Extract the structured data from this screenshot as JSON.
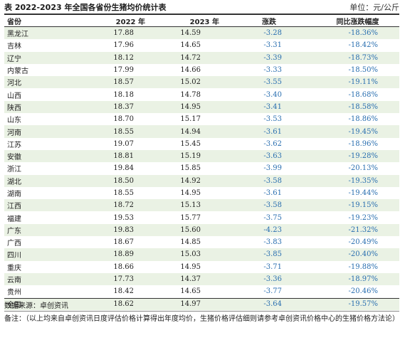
{
  "header": {
    "title": "表 2022-2023 年全国各省份生猪均价统计表",
    "unit": "单位：元/公斤"
  },
  "table": {
    "columns": [
      "省份",
      "2022 年",
      "2023 年",
      "涨跌",
      "同比涨跌幅度"
    ],
    "rows": [
      {
        "province": "黑龙江",
        "y2022": "17.88",
        "y2023": "14.59",
        "change": "-3.28",
        "pct": "-18.36%"
      },
      {
        "province": "吉林",
        "y2022": "17.96",
        "y2023": "14.65",
        "change": "-3.31",
        "pct": "-18.42%"
      },
      {
        "province": "辽宁",
        "y2022": "18.12",
        "y2023": "14.72",
        "change": "-3.39",
        "pct": "-18.73%"
      },
      {
        "province": "内蒙古",
        "y2022": "17.99",
        "y2023": "14.66",
        "change": "-3.33",
        "pct": "-18.50%"
      },
      {
        "province": "河北",
        "y2022": "18.57",
        "y2023": "15.02",
        "change": "-3.55",
        "pct": "-19.11%"
      },
      {
        "province": "山西",
        "y2022": "18.18",
        "y2023": "14.78",
        "change": "-3.40",
        "pct": "-18.68%"
      },
      {
        "province": "陕西",
        "y2022": "18.37",
        "y2023": "14.95",
        "change": "-3.41",
        "pct": "-18.58%"
      },
      {
        "province": "山东",
        "y2022": "18.70",
        "y2023": "15.17",
        "change": "-3.53",
        "pct": "-18.86%"
      },
      {
        "province": "河南",
        "y2022": "18.55",
        "y2023": "14.94",
        "change": "-3.61",
        "pct": "-19.45%"
      },
      {
        "province": "江苏",
        "y2022": "19.07",
        "y2023": "15.45",
        "change": "-3.62",
        "pct": "-18.96%"
      },
      {
        "province": "安徽",
        "y2022": "18.81",
        "y2023": "15.19",
        "change": "-3.63",
        "pct": "-19.28%"
      },
      {
        "province": "浙江",
        "y2022": "19.84",
        "y2023": "15.85",
        "change": "-3.99",
        "pct": "-20.13%"
      },
      {
        "province": "湖北",
        "y2022": "18.50",
        "y2023": "14.92",
        "change": "-3.58",
        "pct": "-19.35%"
      },
      {
        "province": "湖南",
        "y2022": "18.55",
        "y2023": "14.95",
        "change": "-3.61",
        "pct": "-19.44%"
      },
      {
        "province": "江西",
        "y2022": "18.72",
        "y2023": "15.13",
        "change": "-3.58",
        "pct": "-19.15%"
      },
      {
        "province": "福建",
        "y2022": "19.53",
        "y2023": "15.77",
        "change": "-3.75",
        "pct": "-19.23%"
      },
      {
        "province": "广东",
        "y2022": "19.83",
        "y2023": "15.60",
        "change": "-4.23",
        "pct": "-21.32%"
      },
      {
        "province": "广西",
        "y2022": "18.67",
        "y2023": "14.85",
        "change": "-3.83",
        "pct": "-20.49%"
      },
      {
        "province": "四川",
        "y2022": "18.89",
        "y2023": "15.03",
        "change": "-3.85",
        "pct": "-20.40%"
      },
      {
        "province": "重庆",
        "y2022": "18.66",
        "y2023": "14.95",
        "change": "-3.71",
        "pct": "-19.88%"
      },
      {
        "province": "云南",
        "y2022": "17.73",
        "y2023": "14.37",
        "change": "-3.36",
        "pct": "-18.97%"
      },
      {
        "province": "贵州",
        "y2022": "18.42",
        "y2023": "14.65",
        "change": "-3.77",
        "pct": "-20.46%"
      },
      {
        "province": "全国",
        "y2022": "18.62",
        "y2023": "14.97",
        "change": "-3.64",
        "pct": "-19.57%"
      }
    ]
  },
  "footer": {
    "source": "数据来源：卓创资讯",
    "note": "备注：（以上均来自卓创资讯日度评估价格计算得出年度均价，生猪价格评估细则请参考卓创资讯价格中心的生猪价格方法论）"
  },
  "colors": {
    "stripe": "#eaf2e4",
    "value_text": "#2a6fb0",
    "rule": "#333333"
  }
}
